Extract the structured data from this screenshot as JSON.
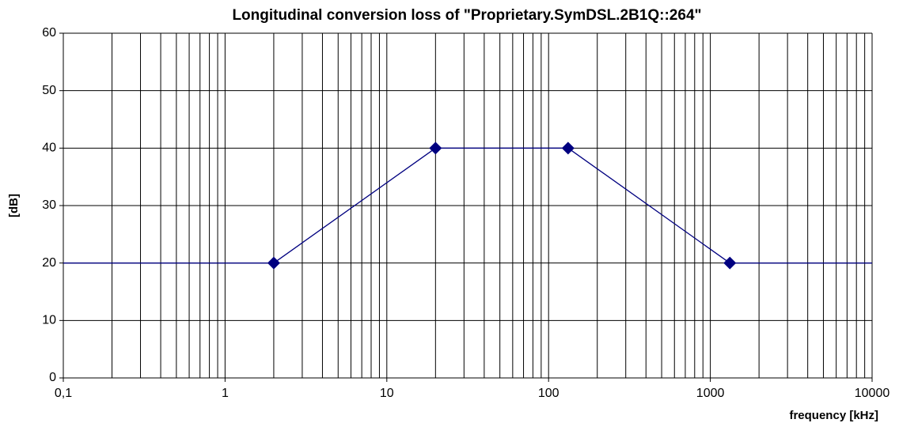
{
  "chart_data": {
    "type": "line",
    "title": "Longitudinal conversion loss of \"Proprietary.SymDSL.2B1Q::264\"",
    "x_label": "frequency [kHz]",
    "y_label": "[dB]",
    "x": [
      0.1,
      2,
      20,
      132,
      1320,
      10000
    ],
    "values": [
      20,
      20,
      40,
      40,
      20,
      20
    ],
    "color": "#000080",
    "x_log": true,
    "xlim": [
      0.1,
      10000
    ],
    "xticks": [
      {
        "value": 0.1,
        "label": "0,1"
      },
      1,
      10,
      100,
      1000,
      10000
    ],
    "ylim": [
      0,
      60
    ],
    "yticks": [
      0,
      10,
      20,
      30,
      40,
      50,
      60
    ],
    "grid": true,
    "minor_grid": true
  }
}
